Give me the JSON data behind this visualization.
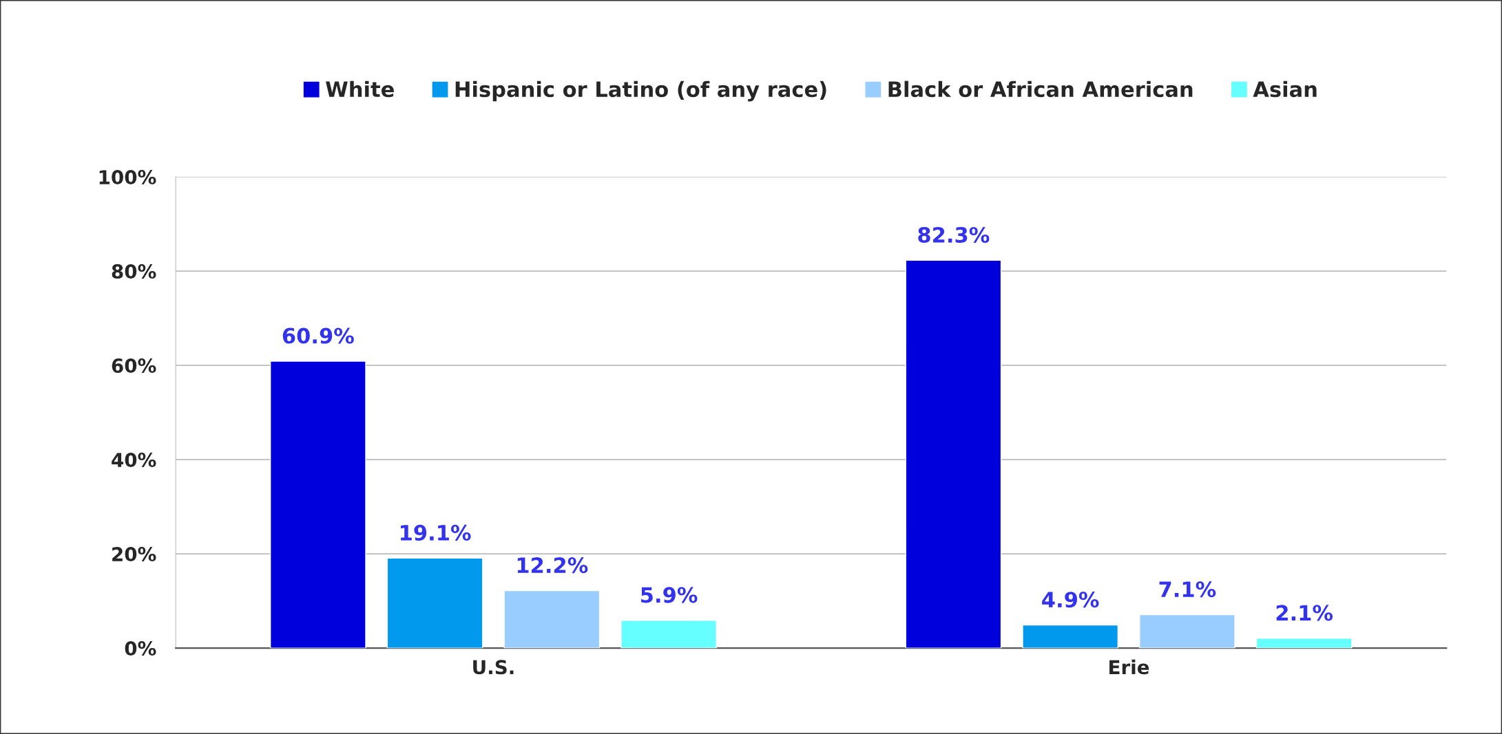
{
  "chart_data": {
    "type": "bar",
    "categories": [
      "U.S.",
      "Erie"
    ],
    "series": [
      {
        "name": "White",
        "color": "#0000dd",
        "values": [
          60.9,
          82.3
        ],
        "value_labels": [
          "60.9%",
          "82.3%"
        ]
      },
      {
        "name": "Hispanic or Latino (of any race)",
        "color": "#0099ee",
        "values": [
          19.1,
          4.9
        ],
        "value_labels": [
          "19.1%",
          "4.9%"
        ]
      },
      {
        "name": "Black or African American",
        "color": "#99ccff",
        "values": [
          12.2,
          7.1
        ],
        "value_labels": [
          "12.2%",
          "7.1%"
        ]
      },
      {
        "name": "Asian",
        "color": "#66ffff",
        "values": [
          5.9,
          2.1
        ],
        "value_labels": [
          "5.9%",
          "2.1%"
        ]
      }
    ],
    "ylim": [
      0,
      100
    ],
    "yticks": [
      {
        "value": 0,
        "label": "0%"
      },
      {
        "value": 20,
        "label": "20%"
      },
      {
        "value": 40,
        "label": "40%"
      },
      {
        "value": 60,
        "label": "60%"
      },
      {
        "value": 80,
        "label": "80%"
      },
      {
        "value": 100,
        "label": "100%"
      }
    ],
    "grid": "y",
    "legend": "top"
  }
}
